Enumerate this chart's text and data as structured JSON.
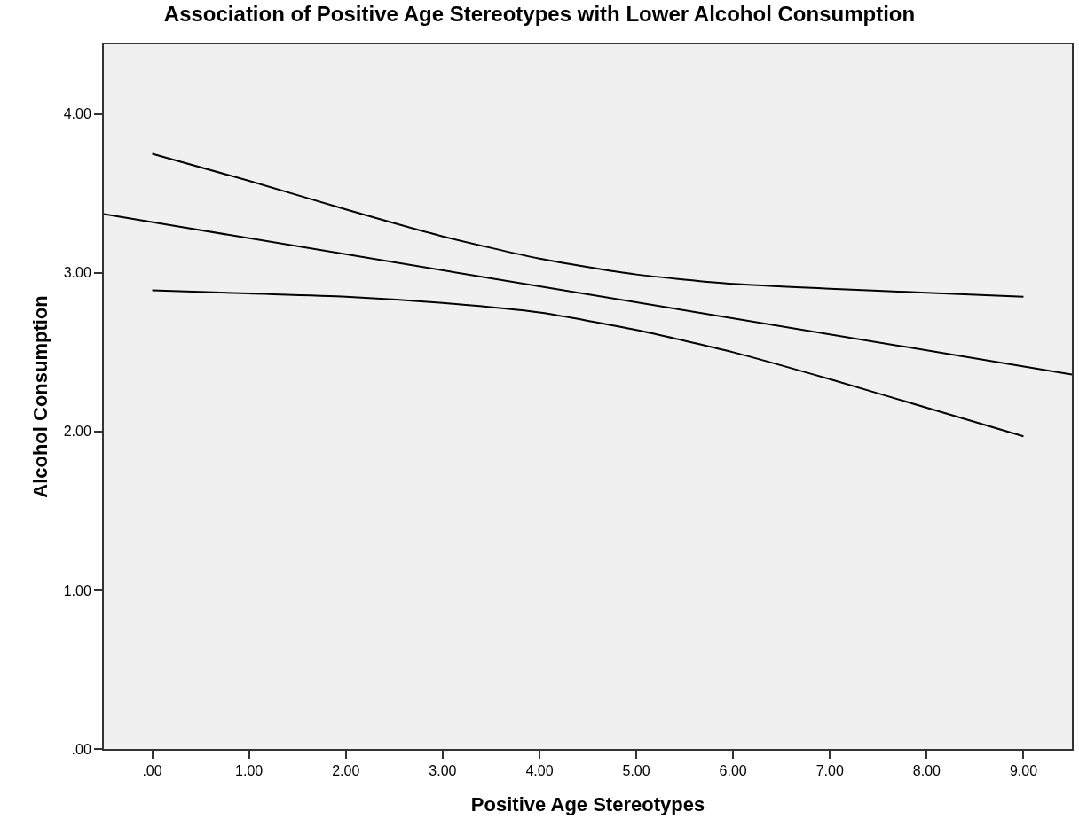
{
  "chart_data": {
    "type": "line",
    "title": "Association of Positive Age Stereotypes with Lower Alcohol Consumption",
    "xlabel": "Positive Age Stereotypes",
    "ylabel": "Alcohol Consumption",
    "xlim": [
      -0.5,
      9.5
    ],
    "ylim": [
      0,
      4.44
    ],
    "xticks": [
      {
        "value": 0,
        "label": ".00"
      },
      {
        "value": 1,
        "label": "1.00"
      },
      {
        "value": 2,
        "label": "2.00"
      },
      {
        "value": 3,
        "label": "3.00"
      },
      {
        "value": 4,
        "label": "4.00"
      },
      {
        "value": 5,
        "label": "5.00"
      },
      {
        "value": 6,
        "label": "6.00"
      },
      {
        "value": 7,
        "label": "7.00"
      },
      {
        "value": 8,
        "label": "8.00"
      },
      {
        "value": 9,
        "label": "9.00"
      }
    ],
    "yticks": [
      {
        "value": 0,
        "label": ".00"
      },
      {
        "value": 1,
        "label": "1.00"
      },
      {
        "value": 2,
        "label": "2.00"
      },
      {
        "value": 3,
        "label": "3.00"
      },
      {
        "value": 4,
        "label": "4.00"
      }
    ],
    "grid": false,
    "marker": "none",
    "line_style": "solid",
    "series": [
      {
        "color": "#000000",
        "x": [
          -0.5,
          9.5
        ],
        "values": [
          3.37,
          2.36
        ]
      },
      {
        "color": "#000000",
        "x": [
          0,
          1,
          2,
          3,
          4,
          5,
          6,
          7,
          8,
          9
        ],
        "values": [
          3.75,
          3.58,
          3.4,
          3.23,
          3.09,
          2.99,
          2.93,
          2.9,
          2.875,
          2.85
        ]
      },
      {
        "color": "#000000",
        "x": [
          0,
          1,
          2,
          3,
          4,
          5,
          6,
          7,
          8,
          9
        ],
        "values": [
          2.89,
          2.87,
          2.85,
          2.81,
          2.75,
          2.64,
          2.5,
          2.33,
          2.15,
          1.97
        ]
      }
    ]
  }
}
